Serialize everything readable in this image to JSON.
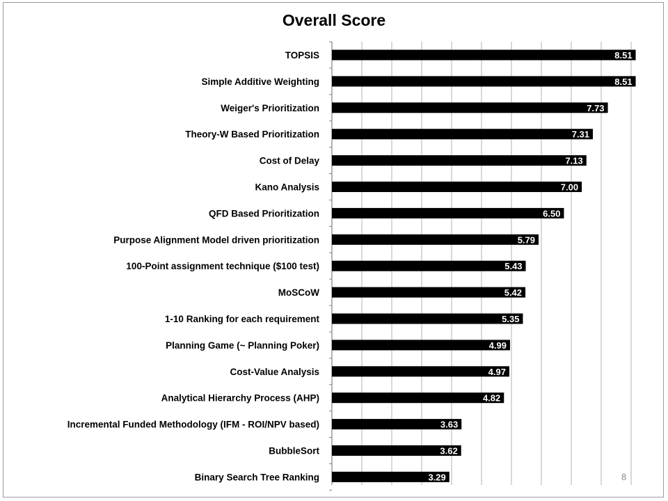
{
  "slide": {
    "page_number": "8"
  },
  "chart_data": {
    "type": "bar",
    "orientation": "horizontal",
    "title": "Overall Score",
    "xlim": [
      0,
      9.5
    ],
    "grid": "vertical gridlines",
    "bar_color": "#000000",
    "label_color": "#ffffff",
    "categories": [
      "TOPSIS",
      "Simple Additive Weighting",
      "Weiger's Prioritization",
      "Theory-W Based Prioritization",
      "Cost of Delay",
      "Kano Analysis",
      "QFD Based Prioritization",
      "Purpose Alignment Model driven prioritization",
      "100-Point assignment technique ($100 test)",
      "MoSCoW",
      "1-10 Ranking for each requirement",
      "Planning Game (~ Planning Poker)",
      "Cost-Value Analysis",
      "Analytical Hierarchy Process (AHP)",
      "Incremental Funded Methodology (IFM - ROI/NPV based)",
      "BubbleSort",
      "Binary Search Tree Ranking"
    ],
    "values": [
      8.51,
      8.51,
      7.73,
      7.31,
      7.13,
      7.0,
      6.5,
      5.79,
      5.43,
      5.42,
      5.35,
      4.99,
      4.97,
      4.82,
      3.63,
      3.62,
      3.29
    ],
    "value_labels": [
      "8.51",
      "8.51",
      "7.73",
      "7.31",
      "7.13",
      "7.00",
      "6.50",
      "5.79",
      "5.43",
      "5.42",
      "5.35",
      "4.99",
      "4.97",
      "4.82",
      "3.63",
      "3.62",
      "3.29"
    ]
  }
}
